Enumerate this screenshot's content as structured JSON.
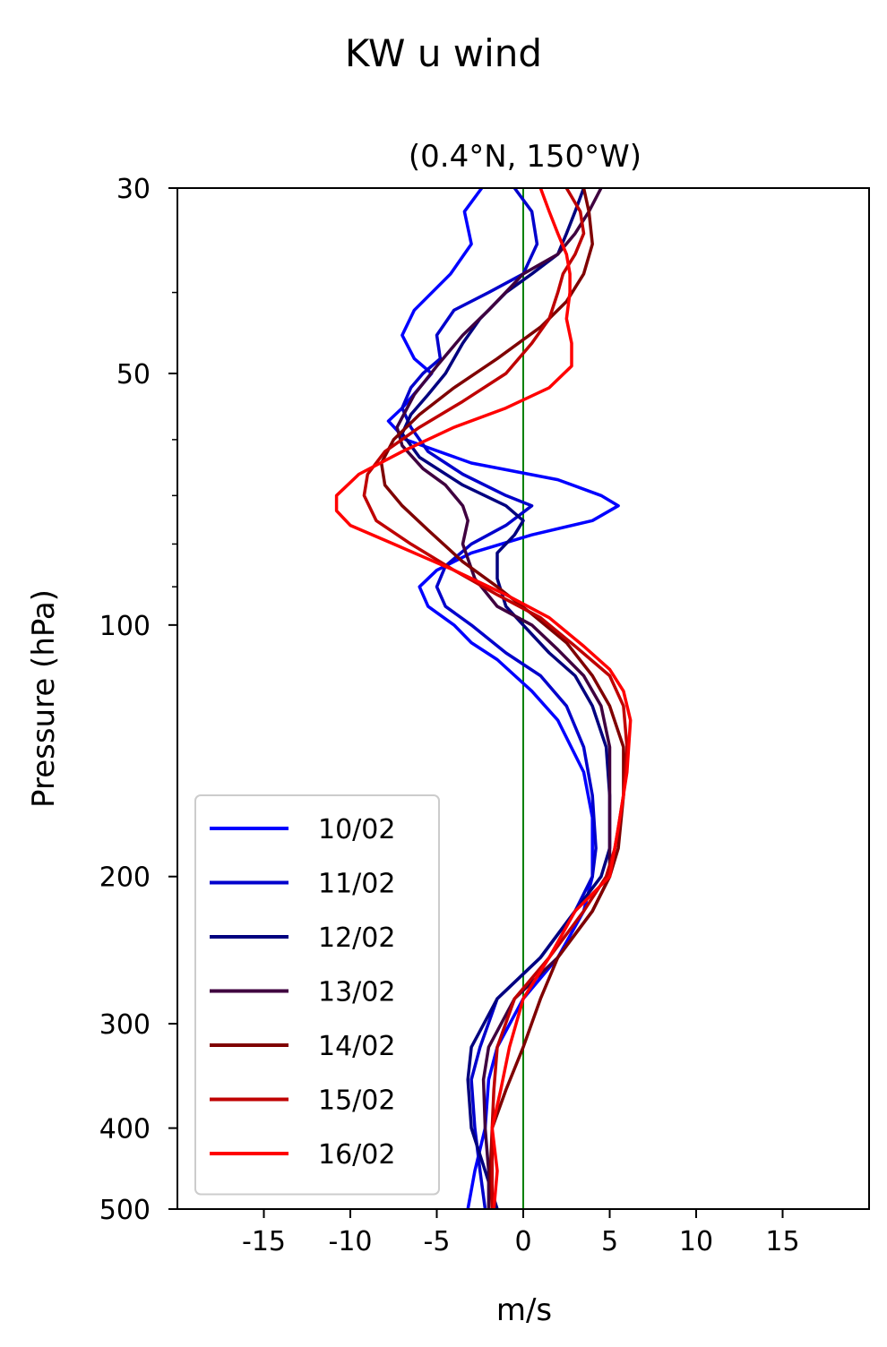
{
  "chart_data": {
    "type": "line",
    "title": "KW u wind",
    "subtitle": "(0.4°N, 150°W)",
    "xlabel": "m/s",
    "ylabel": "Pressure (hPa)",
    "xlim": [
      -20,
      20
    ],
    "ylim": [
      500,
      30
    ],
    "yscale": "log",
    "x_ticks": [
      -15,
      -10,
      -5,
      0,
      5,
      10,
      15
    ],
    "x_tick_labels": [
      "-15",
      "-10",
      "-5",
      "0",
      "5",
      "10",
      "15"
    ],
    "y_ticks": [
      30,
      50,
      100,
      200,
      300,
      400,
      500
    ],
    "y_tick_labels": [
      "30",
      "50",
      "100",
      "200",
      "300",
      "400",
      "500"
    ],
    "reference_line": {
      "x": 0,
      "color": "#008000"
    },
    "legend_position": "lower-left",
    "grid": false,
    "series": [
      {
        "name": "10/02",
        "color": "#0000ff",
        "points": [
          [
            -2.4,
            30
          ],
          [
            -3.4,
            32
          ],
          [
            -3.0,
            35
          ],
          [
            -4.2,
            38
          ],
          [
            -6.3,
            42
          ],
          [
            -7.0,
            45
          ],
          [
            -6.3,
            48
          ],
          [
            -5.3,
            50
          ],
          [
            -6.0,
            52
          ],
          [
            -7.0,
            55
          ],
          [
            -7.8,
            57
          ],
          [
            -6.8,
            60
          ],
          [
            -3.0,
            64
          ],
          [
            2.0,
            67
          ],
          [
            4.5,
            70
          ],
          [
            5.5,
            72
          ],
          [
            4.0,
            75
          ],
          [
            0.5,
            78
          ],
          [
            -3.0,
            82
          ],
          [
            -5.0,
            86
          ],
          [
            -6.0,
            90
          ],
          [
            -5.5,
            95
          ],
          [
            -4.0,
            100
          ],
          [
            -3.0,
            105
          ],
          [
            -1.5,
            110
          ],
          [
            0.5,
            120
          ],
          [
            2.0,
            130
          ],
          [
            3.5,
            150
          ],
          [
            4.0,
            170
          ],
          [
            4.0,
            200
          ],
          [
            3.5,
            220
          ],
          [
            2.0,
            250
          ],
          [
            0,
            280
          ],
          [
            -1.5,
            320
          ],
          [
            -2.0,
            350
          ],
          [
            -2.2,
            400
          ],
          [
            -2.8,
            450
          ],
          [
            -3.2,
            500
          ]
        ]
      },
      {
        "name": "11/02",
        "color": "#0000cc",
        "points": [
          [
            -0.5,
            30
          ],
          [
            0.5,
            32
          ],
          [
            0.8,
            35
          ],
          [
            0,
            38
          ],
          [
            -2.0,
            40
          ],
          [
            -4.0,
            42
          ],
          [
            -5.0,
            45
          ],
          [
            -4.8,
            48
          ],
          [
            -5.8,
            50
          ],
          [
            -6.5,
            52
          ],
          [
            -7.0,
            55
          ],
          [
            -6.5,
            58
          ],
          [
            -5.5,
            62
          ],
          [
            -3.5,
            66
          ],
          [
            -1.0,
            70
          ],
          [
            0.5,
            72
          ],
          [
            -1.0,
            76
          ],
          [
            -3.0,
            80
          ],
          [
            -4.5,
            85
          ],
          [
            -5.0,
            90
          ],
          [
            -4.5,
            95
          ],
          [
            -3.0,
            100
          ],
          [
            -1.0,
            108
          ],
          [
            1.0,
            115
          ],
          [
            2.5,
            125
          ],
          [
            3.5,
            140
          ],
          [
            4.0,
            160
          ],
          [
            4.2,
            185
          ],
          [
            4.0,
            200
          ],
          [
            3.0,
            220
          ],
          [
            1.0,
            250
          ],
          [
            -1.5,
            280
          ],
          [
            -2.5,
            320
          ],
          [
            -3.0,
            350
          ],
          [
            -2.8,
            400
          ],
          [
            -2.5,
            450
          ],
          [
            -2.2,
            500
          ]
        ]
      },
      {
        "name": "12/02",
        "color": "#00007f",
        "points": [
          [
            3.5,
            30
          ],
          [
            3.0,
            32
          ],
          [
            2.5,
            34
          ],
          [
            2.0,
            36
          ],
          [
            0.5,
            38
          ],
          [
            -1.0,
            40
          ],
          [
            -2.5,
            43
          ],
          [
            -3.5,
            46
          ],
          [
            -4.5,
            50
          ],
          [
            -5.5,
            53
          ],
          [
            -6.5,
            56
          ],
          [
            -7.0,
            59
          ],
          [
            -6.0,
            63
          ],
          [
            -3.5,
            68
          ],
          [
            -1.0,
            72
          ],
          [
            0,
            75
          ],
          [
            -0.5,
            78
          ],
          [
            -1.5,
            82
          ],
          [
            -1.5,
            88
          ],
          [
            -1.0,
            95
          ],
          [
            0,
            100
          ],
          [
            1.5,
            108
          ],
          [
            3.0,
            115
          ],
          [
            4.0,
            125
          ],
          [
            4.8,
            140
          ],
          [
            5.0,
            160
          ],
          [
            5.0,
            185
          ],
          [
            4.5,
            200
          ],
          [
            3.0,
            220
          ],
          [
            1.0,
            250
          ],
          [
            -1.5,
            280
          ],
          [
            -3.0,
            320
          ],
          [
            -3.2,
            350
          ],
          [
            -3.0,
            400
          ],
          [
            -2.2,
            450
          ],
          [
            -1.5,
            500
          ]
        ]
      },
      {
        "name": "13/02",
        "color": "#3f003f",
        "points": [
          [
            4.5,
            30
          ],
          [
            3.8,
            32
          ],
          [
            3.0,
            34
          ],
          [
            2.0,
            36
          ],
          [
            0,
            38
          ],
          [
            -2.0,
            42
          ],
          [
            -3.5,
            45
          ],
          [
            -5.0,
            49
          ],
          [
            -6.3,
            53
          ],
          [
            -7.3,
            58
          ],
          [
            -7.0,
            61
          ],
          [
            -5.8,
            65
          ],
          [
            -4.5,
            68
          ],
          [
            -3.5,
            72
          ],
          [
            -3.2,
            75
          ],
          [
            -3.5,
            80
          ],
          [
            -2.8,
            88
          ],
          [
            -1.5,
            95
          ],
          [
            0.5,
            100
          ],
          [
            2.0,
            107
          ],
          [
            3.5,
            115
          ],
          [
            4.5,
            125
          ],
          [
            5.0,
            140
          ],
          [
            5.0,
            160
          ],
          [
            5.0,
            185
          ],
          [
            5.0,
            200
          ],
          [
            4.0,
            220
          ],
          [
            2.0,
            250
          ],
          [
            -0.5,
            280
          ],
          [
            -2.0,
            320
          ],
          [
            -2.3,
            350
          ],
          [
            -2.2,
            400
          ],
          [
            -2.0,
            450
          ],
          [
            -2.0,
            500
          ]
        ]
      },
      {
        "name": "14/02",
        "color": "#7f0000",
        "points": [
          [
            3.5,
            30
          ],
          [
            3.8,
            32
          ],
          [
            4.0,
            35
          ],
          [
            3.5,
            38
          ],
          [
            2.5,
            41
          ],
          [
            1.0,
            44
          ],
          [
            -1.5,
            48
          ],
          [
            -4.0,
            52
          ],
          [
            -6.0,
            56
          ],
          [
            -7.5,
            60
          ],
          [
            -8.2,
            64
          ],
          [
            -8.0,
            68
          ],
          [
            -7.0,
            72
          ],
          [
            -5.5,
            77
          ],
          [
            -3.5,
            84
          ],
          [
            -1.5,
            90
          ],
          [
            0.5,
            97
          ],
          [
            2.5,
            105
          ],
          [
            4.0,
            115
          ],
          [
            5.0,
            125
          ],
          [
            5.8,
            140
          ],
          [
            5.8,
            160
          ],
          [
            5.5,
            185
          ],
          [
            5.0,
            200
          ],
          [
            4.0,
            220
          ],
          [
            2.0,
            250
          ],
          [
            1.0,
            280
          ],
          [
            0,
            320
          ],
          [
            -1.0,
            360
          ],
          [
            -1.8,
            400
          ],
          [
            -1.9,
            450
          ],
          [
            -1.8,
            500
          ]
        ]
      },
      {
        "name": "15/02",
        "color": "#bf0000",
        "points": [
          [
            2.5,
            30
          ],
          [
            3.3,
            32
          ],
          [
            3.5,
            34
          ],
          [
            3.0,
            36
          ],
          [
            2.3,
            38
          ],
          [
            2.0,
            40
          ],
          [
            1.5,
            43
          ],
          [
            0.5,
            46
          ],
          [
            -1.0,
            50
          ],
          [
            -3.5,
            54
          ],
          [
            -6.0,
            58
          ],
          [
            -8.0,
            62
          ],
          [
            -9.0,
            66
          ],
          [
            -9.2,
            70
          ],
          [
            -8.5,
            75
          ],
          [
            -6.5,
            80
          ],
          [
            -4.0,
            86
          ],
          [
            -1.5,
            92
          ],
          [
            1.0,
            98
          ],
          [
            3.0,
            106
          ],
          [
            5.0,
            115
          ],
          [
            5.8,
            125
          ],
          [
            6.0,
            140
          ],
          [
            5.8,
            160
          ],
          [
            5.3,
            185
          ],
          [
            4.8,
            200
          ],
          [
            3.5,
            220
          ],
          [
            1.5,
            250
          ],
          [
            -0.5,
            280
          ],
          [
            -1.5,
            320
          ],
          [
            -1.7,
            360
          ],
          [
            -1.8,
            400
          ],
          [
            -1.8,
            450
          ],
          [
            -1.8,
            500
          ]
        ]
      },
      {
        "name": "16/02",
        "color": "#ff0000",
        "points": [
          [
            1.0,
            30
          ],
          [
            1.5,
            32
          ],
          [
            2.0,
            34
          ],
          [
            2.5,
            36
          ],
          [
            2.7,
            38
          ],
          [
            2.7,
            40
          ],
          [
            2.5,
            43
          ],
          [
            2.8,
            46
          ],
          [
            2.8,
            49
          ],
          [
            1.5,
            52
          ],
          [
            -1.0,
            55
          ],
          [
            -4.0,
            58
          ],
          [
            -7.0,
            62
          ],
          [
            -9.5,
            66
          ],
          [
            -10.8,
            70
          ],
          [
            -10.8,
            73
          ],
          [
            -10.0,
            76
          ],
          [
            -7.5,
            80
          ],
          [
            -4.0,
            86
          ],
          [
            -1.0,
            92
          ],
          [
            1.5,
            98
          ],
          [
            3.5,
            106
          ],
          [
            5.0,
            113
          ],
          [
            5.8,
            120
          ],
          [
            6.2,
            130
          ],
          [
            6.0,
            150
          ],
          [
            5.5,
            175
          ],
          [
            5.0,
            200
          ],
          [
            3.0,
            220
          ],
          [
            1.5,
            250
          ],
          [
            0,
            280
          ],
          [
            -0.8,
            320
          ],
          [
            -1.3,
            360
          ],
          [
            -1.8,
            400
          ],
          [
            -1.5,
            450
          ],
          [
            -1.7,
            500
          ]
        ]
      }
    ]
  }
}
